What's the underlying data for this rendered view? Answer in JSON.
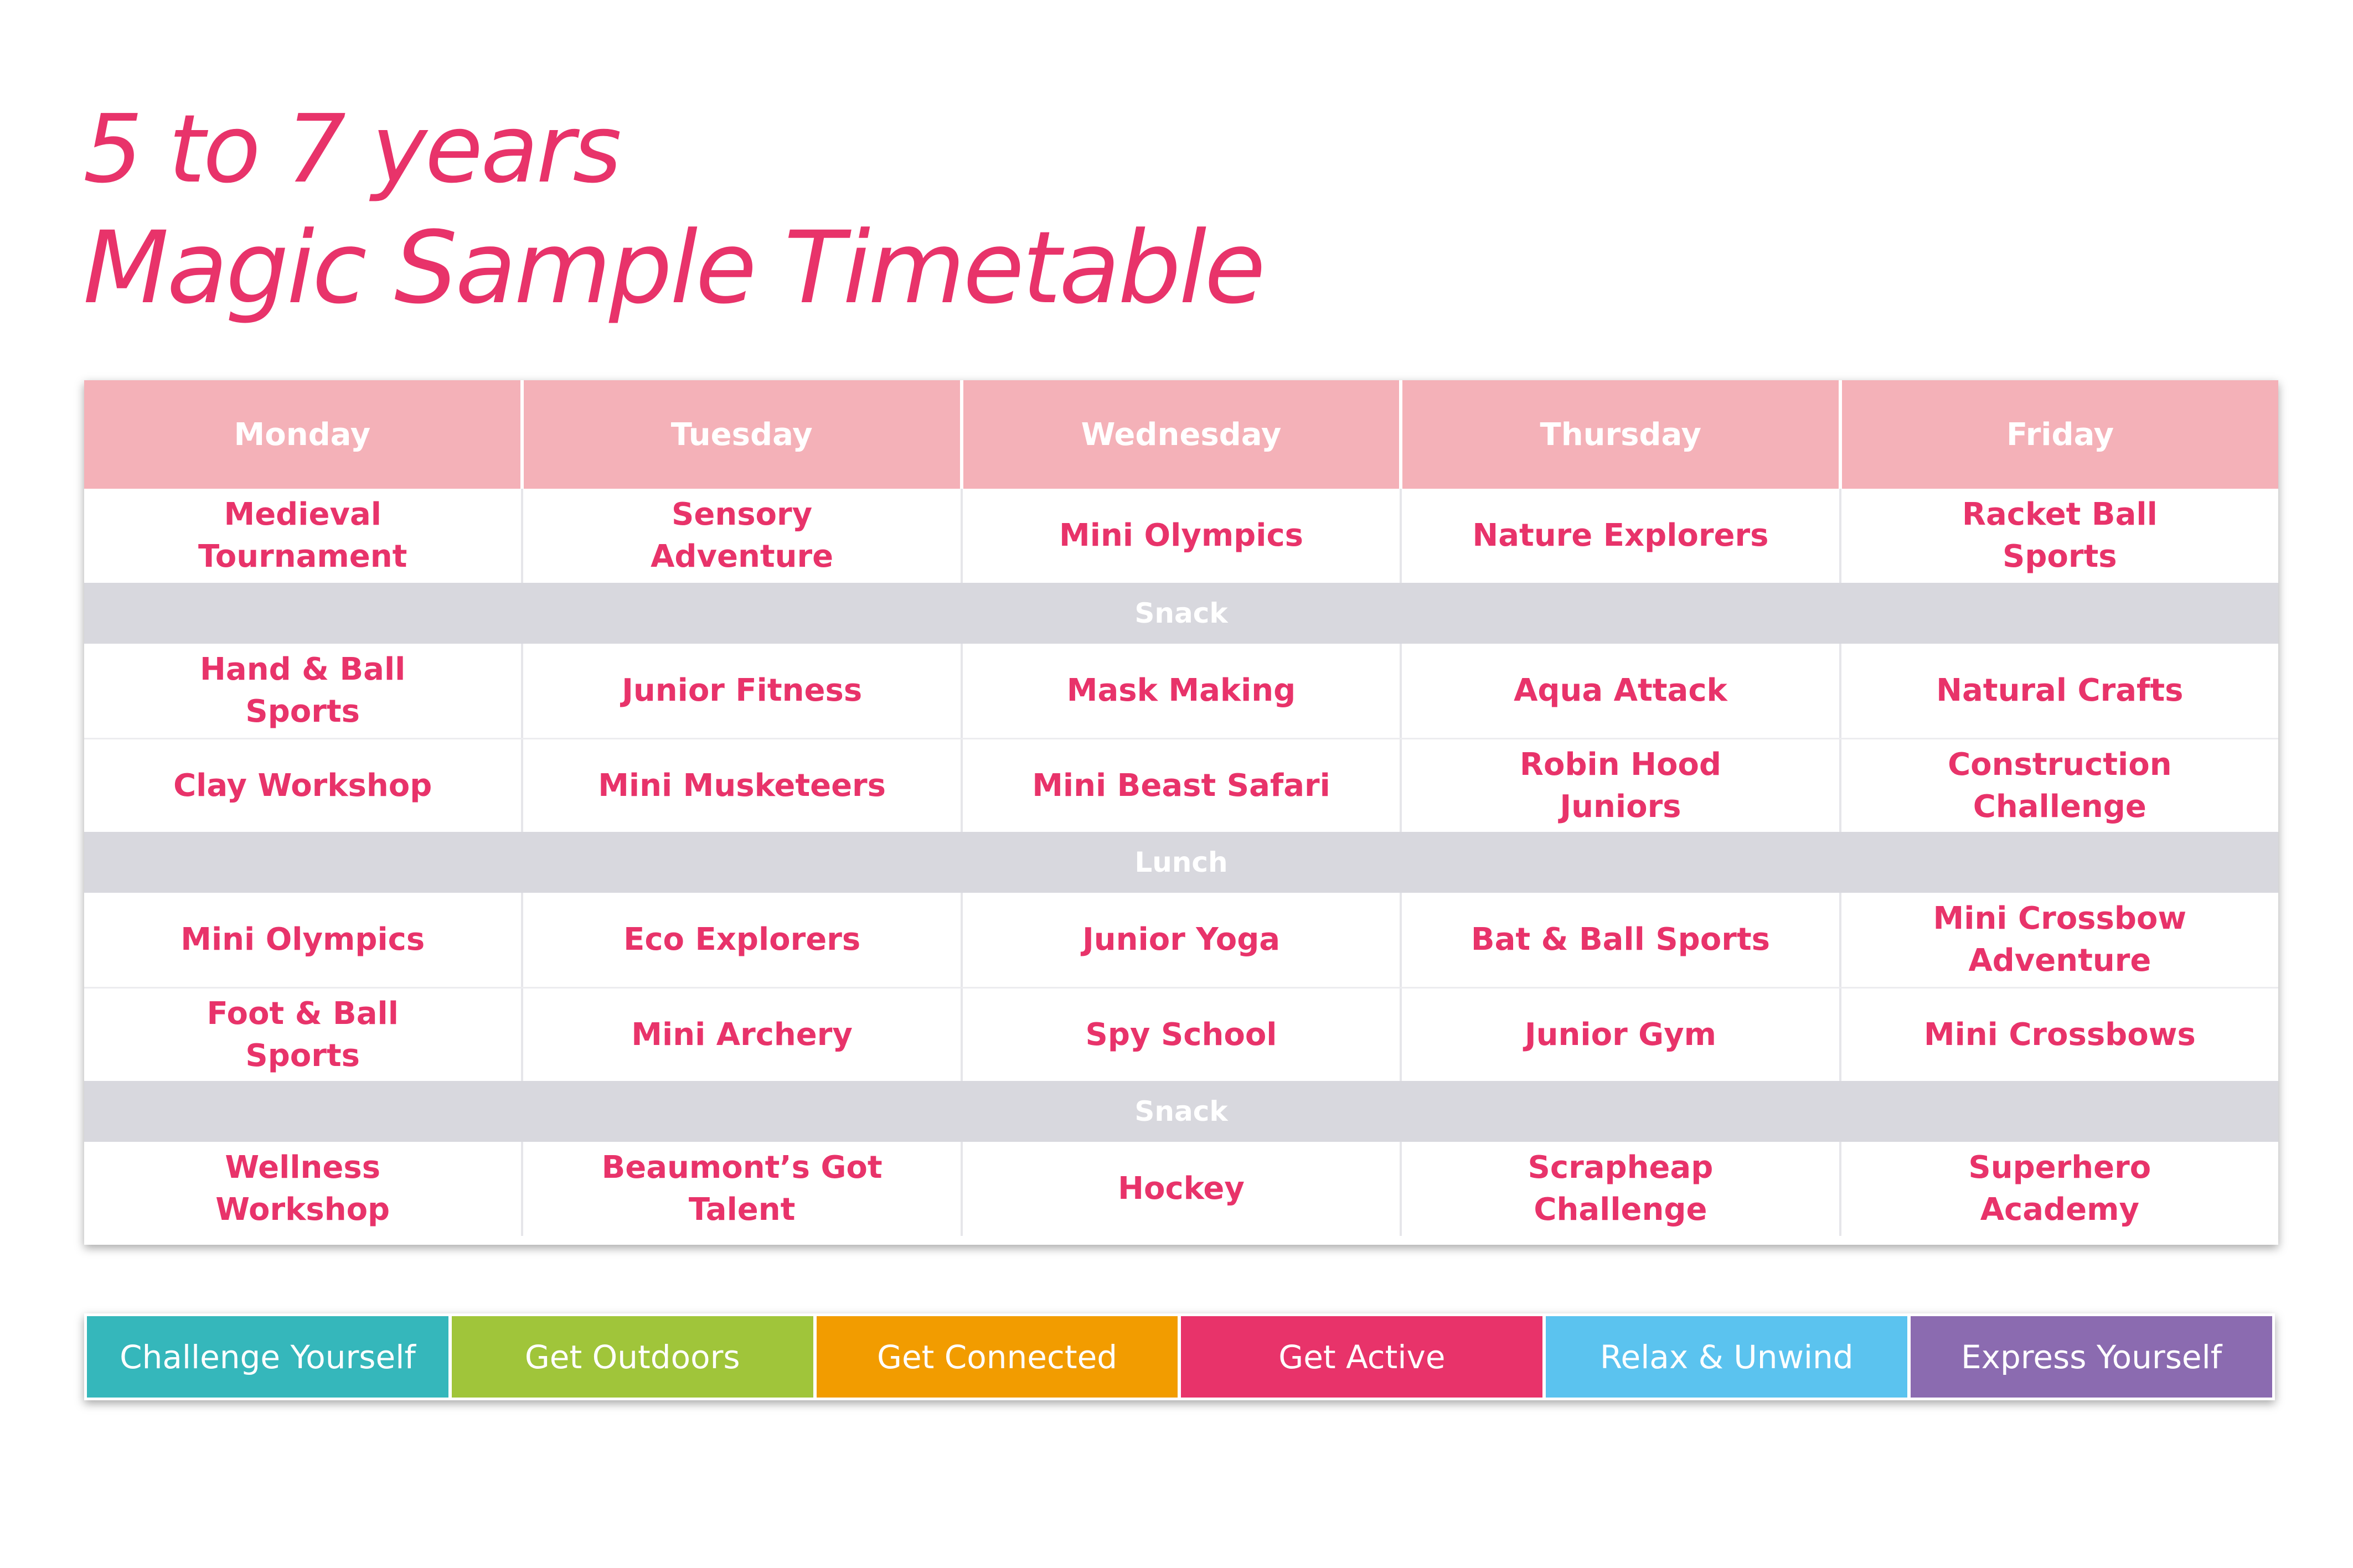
{
  "title": {
    "line1": "5 to 7 years",
    "line2": "Magic Sample Timetable"
  },
  "days": [
    "Monday",
    "Tuesday",
    "Wednesday",
    "Thursday",
    "Friday"
  ],
  "session1": [
    "Medieval Tournament",
    "Sensory Adventure",
    "Mini Olympics",
    "Nature Explorers",
    "Racket Ball Sports"
  ],
  "break1": "Snack",
  "session2": [
    "Hand & Ball Sports",
    "Junior Fitness",
    "Mask Making",
    "Aqua Attack",
    "Natural Crafts"
  ],
  "session3": [
    "Clay Workshop",
    "Mini Musketeers",
    "Mini Beast Safari",
    "Robin Hood Juniors",
    "Construction Challenge"
  ],
  "break2": "Lunch",
  "session4": [
    "Mini Olympics",
    "Eco Explorers",
    "Junior Yoga",
    "Bat & Ball Sports",
    "Mini Crossbow Adventure"
  ],
  "session5": [
    "Foot & Ball Sports",
    "Mini Archery",
    "Spy School",
    "Junior Gym",
    "Mini Crossbows"
  ],
  "break3": "Snack",
  "session6": [
    "Wellness Workshop",
    "Beaumont’s Got Talent",
    "Hockey",
    "Scrapheap Challenge",
    "Superhero Academy"
  ],
  "legend": [
    {
      "label": "Challenge Yourself",
      "color": "#35b7bb"
    },
    {
      "label": "Get Outdoors",
      "color": "#a0c53a"
    },
    {
      "label": "Get Connected",
      "color": "#f29c00"
    },
    {
      "label": "Get Active",
      "color": "#e8336a"
    },
    {
      "label": "Relax & Unwind",
      "color": "#5bc3ef"
    },
    {
      "label": "Express Yourself",
      "color": "#8b6bb0"
    }
  ],
  "colors": {
    "title": "#e8336a",
    "header_bg": "#f4b1b8",
    "break_bg": "#d8d8de",
    "activity_text": "#e8336a"
  }
}
